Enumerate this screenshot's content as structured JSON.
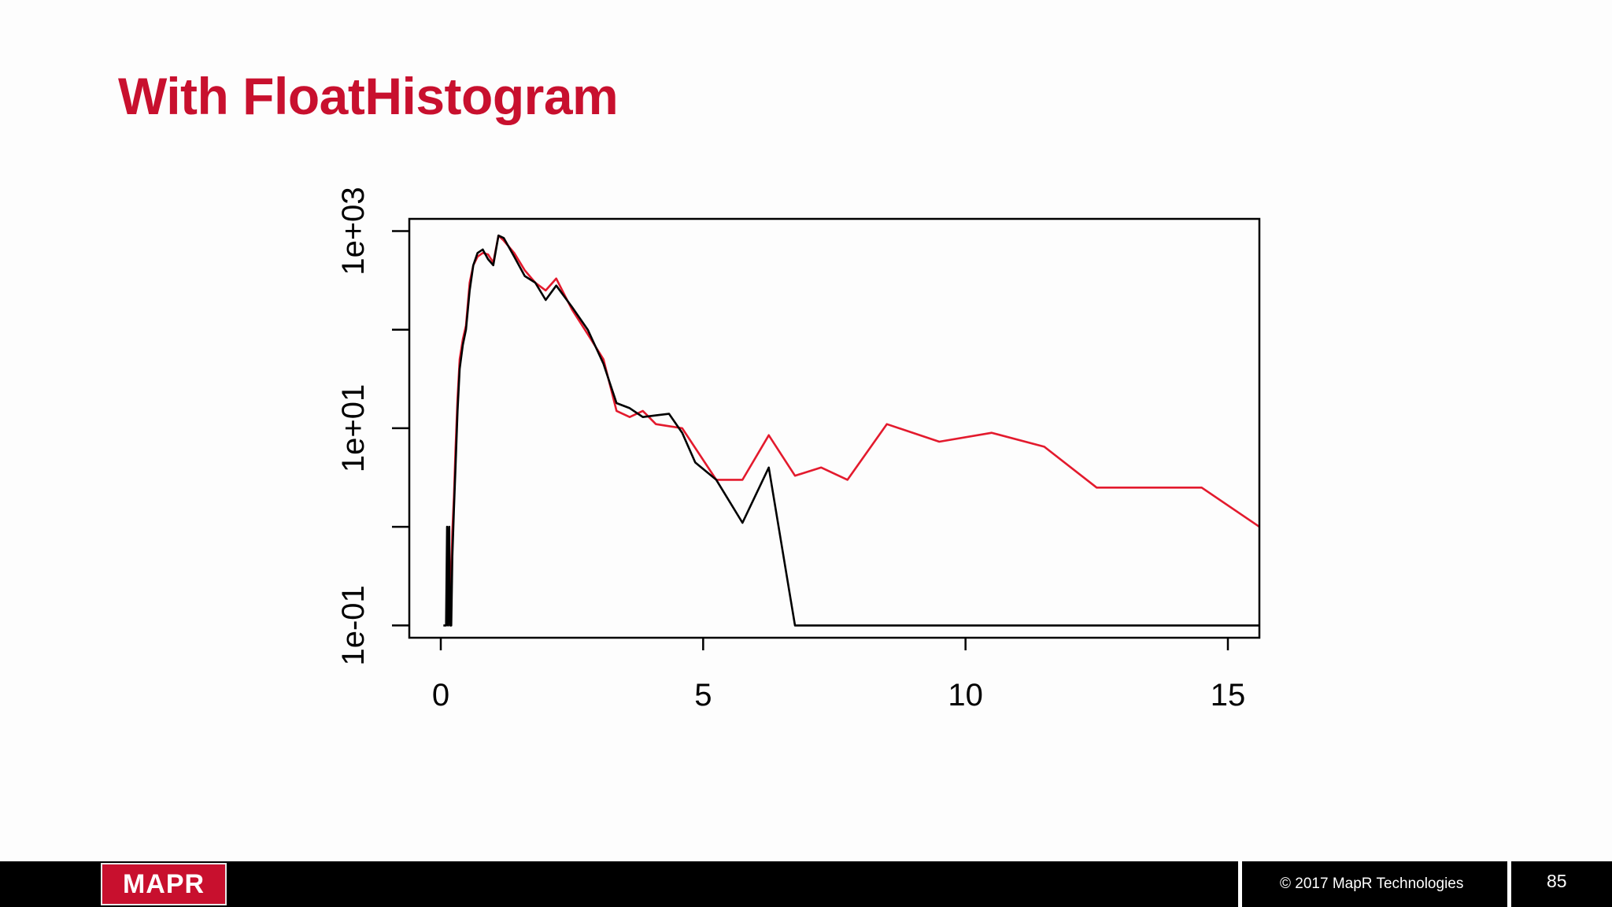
{
  "slide": {
    "title": "With FloatHistogram"
  },
  "footer": {
    "logo_text": "MAPR",
    "copyright": "© 2017 MapR Technologies",
    "page_number": "85"
  },
  "colors": {
    "title": "#c8102e",
    "series_red": "#e31a2d",
    "series_black": "#000000"
  },
  "chart_data": {
    "type": "line",
    "title": "",
    "xlabel": "",
    "ylabel": "",
    "y_scale": "log",
    "xlim": [
      -0.6,
      15.6
    ],
    "ylim": [
      0.075,
      1330
    ],
    "x_ticks": [
      0,
      5,
      10,
      15
    ],
    "x_tick_labels": [
      "0",
      "5",
      "10",
      "15"
    ],
    "y_ticks": [
      0.1,
      1,
      10,
      100,
      1000
    ],
    "y_tick_labels": [
      "1e-01",
      "",
      "1e+01",
      "",
      "1e+03"
    ],
    "grid": false,
    "legend": "none",
    "series": [
      {
        "color": "#e31a2d",
        "x": [
          0.18,
          0.2,
          0.22,
          0.25,
          0.28,
          0.32,
          0.36,
          0.42,
          0.48,
          0.55,
          0.62,
          0.7,
          0.8,
          0.9,
          1.0,
          1.1,
          1.2,
          1.4,
          1.6,
          1.8,
          2.0,
          2.2,
          2.5,
          2.8,
          3.1,
          3.35,
          3.6,
          3.85,
          4.1,
          4.35,
          4.6,
          5.25,
          5.75,
          6.25,
          6.75,
          7.25,
          7.75,
          8.5,
          9.5,
          10.5,
          11.5,
          12.5,
          13.5,
          14.5,
          15.6
        ],
        "y": [
          0.1,
          0.3,
          0.9,
          2.0,
          6.0,
          20,
          50,
          80,
          110,
          300,
          450,
          550,
          600,
          580,
          480,
          900,
          800,
          600,
          400,
          300,
          250,
          330,
          160,
          90,
          50,
          15,
          13,
          15,
          11,
          10.5,
          10,
          3.0,
          3.0,
          8.5,
          3.3,
          4.0,
          3.0,
          11,
          7.3,
          9,
          6.5,
          2.5,
          2.5,
          2.5,
          1.0
        ]
      },
      {
        "color": "#000000",
        "x": [
          0.05,
          0.1,
          0.12,
          0.14,
          0.16,
          0.18,
          0.2,
          0.22,
          0.25,
          0.28,
          0.32,
          0.36,
          0.42,
          0.48,
          0.55,
          0.62,
          0.7,
          0.8,
          0.9,
          1.0,
          1.1,
          1.2,
          1.4,
          1.6,
          1.8,
          2.0,
          2.2,
          2.5,
          2.8,
          3.1,
          3.35,
          3.6,
          3.85,
          4.1,
          4.35,
          4.6,
          4.85,
          5.25,
          5.75,
          6.25,
          6.75,
          7.5,
          10,
          12.5,
          15.6
        ],
        "y": [
          0.1,
          0.1,
          1.0,
          0.1,
          1.0,
          0.1,
          0.1,
          0.5,
          1.5,
          4.0,
          15,
          40,
          70,
          100,
          250,
          450,
          600,
          650,
          520,
          450,
          900,
          850,
          550,
          350,
          300,
          200,
          280,
          170,
          100,
          45,
          18,
          16,
          13,
          13.5,
          14,
          9,
          4.5,
          3.0,
          1.1,
          4.0,
          0.1,
          0.1,
          0.1,
          0.1,
          0.1
        ]
      }
    ]
  }
}
